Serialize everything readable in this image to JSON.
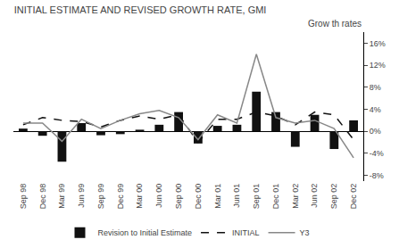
{
  "chart_data": {
    "type": "bar",
    "title": "INITIAL ESTIMATE AND REVISED GROWTH RATE, GMI",
    "ylabel": "Grow th rates",
    "categories": [
      "Sep 98",
      "Dec 98",
      "Mar 99",
      "Jun 99",
      "Sep 99",
      "Dec 99",
      "Mar 00",
      "Jun 00",
      "Sep 00",
      "Dec 00",
      "Mar 01",
      "Jun 01",
      "Sep 01",
      "Dec 01",
      "Mar 02",
      "Jun 02",
      "Sep 02",
      "Dec 02"
    ],
    "series": [
      {
        "name": "Revision to Initial Estimate",
        "type": "bar",
        "color": "#111111",
        "values": [
          0.5,
          -0.8,
          -5.5,
          1.5,
          -0.7,
          -0.5,
          0.3,
          1.2,
          3.5,
          -2.2,
          1.0,
          1.2,
          7.2,
          3.5,
          -2.8,
          3.0,
          -3.2,
          2.0
        ]
      },
      {
        "name": "INITIAL",
        "type": "line",
        "color": "#111111",
        "line_style": "dashed",
        "values": [
          1.2,
          2.5,
          2.0,
          1.8,
          0.8,
          2.0,
          2.8,
          2.2,
          3.0,
          -2.0,
          2.2,
          2.2,
          3.5,
          2.8,
          1.2,
          3.5,
          3.0,
          -1.5
        ]
      },
      {
        "name": "Y3",
        "type": "line",
        "color": "#888888",
        "line_style": "solid",
        "values": [
          1.5,
          1.5,
          -1.8,
          2.2,
          0.5,
          2.0,
          3.2,
          3.8,
          2.5,
          -1.5,
          3.0,
          1.5,
          14.0,
          2.5,
          1.5,
          2.0,
          0.5,
          -4.8
        ]
      }
    ],
    "ylim": [
      -9,
      18
    ],
    "yticks": [
      {
        "value": -8,
        "label": "-8%"
      },
      {
        "value": -4,
        "label": "-4%"
      },
      {
        "value": 0,
        "label": "0%"
      },
      {
        "value": 4,
        "label": "4%"
      },
      {
        "value": 8,
        "label": "8%"
      },
      {
        "value": 12,
        "label": "12%"
      },
      {
        "value": 16,
        "label": "16%"
      }
    ],
    "grid": false,
    "legend": "bottom"
  }
}
